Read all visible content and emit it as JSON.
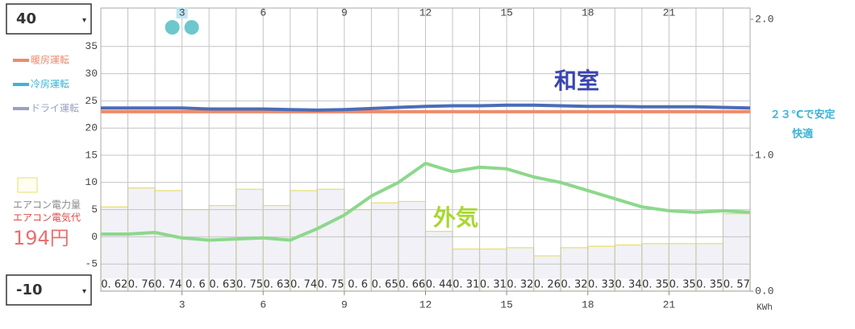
{
  "chart_data": {
    "type": "line",
    "xlim": [
      0,
      24
    ],
    "xticks": [
      3,
      6,
      9,
      12,
      15,
      18,
      21
    ],
    "ylim": [
      -10,
      40
    ],
    "yticks": [
      -5,
      0,
      5,
      10,
      15,
      20,
      25,
      30,
      35
    ],
    "y2lim": [
      0,
      2
    ],
    "y2ticks": [
      {
        "value": 2,
        "label": "2.0"
      },
      {
        "value": 1,
        "label": "1.0"
      },
      {
        "value": 0,
        "label": "0.0"
      }
    ],
    "y2_unit": "KWh",
    "grid": true,
    "x": [
      0,
      1,
      2,
      3,
      4,
      5,
      6,
      7,
      8,
      9,
      10,
      11,
      12,
      13,
      14,
      15,
      16,
      17,
      18,
      19,
      20,
      21,
      22,
      23,
      24
    ],
    "series": [
      {
        "name": "暖房運転",
        "color": "#f08a6a",
        "placement": "legend",
        "values": [
          23,
          23,
          23,
          23,
          23,
          23,
          23,
          23,
          23,
          23,
          23,
          23,
          23,
          23,
          23,
          23,
          23,
          23,
          23,
          23,
          23,
          23,
          23,
          23,
          23
        ]
      },
      {
        "name": "冷房運転",
        "color": "#3cb4d8",
        "placement": "legend",
        "values": [
          null,
          null,
          null,
          null,
          null,
          null,
          null,
          null,
          null,
          null,
          null,
          null,
          null,
          null,
          null,
          null,
          null,
          null,
          null,
          null,
          null,
          null,
          null,
          null,
          null
        ]
      },
      {
        "name": "ドライ運転",
        "color": "#9aa0c4",
        "placement": "legend",
        "values": [
          null,
          null,
          null,
          null,
          null,
          null,
          null,
          null,
          null,
          null,
          null,
          null,
          null,
          null,
          null,
          null,
          null,
          null,
          null,
          null,
          null,
          null,
          null,
          null,
          null
        ]
      },
      {
        "name": "和室",
        "color": "#4a6db8",
        "placement": "inline",
        "values": [
          23.7,
          23.7,
          23.7,
          23.7,
          23.5,
          23.5,
          23.5,
          23.4,
          23.3,
          23.4,
          23.6,
          23.8,
          24.0,
          24.1,
          24.1,
          24.2,
          24.2,
          24.1,
          24.0,
          24.0,
          23.9,
          23.9,
          23.9,
          23.8,
          23.7
        ]
      },
      {
        "name": "外気",
        "color": "#8cd88c",
        "placement": "inline",
        "values": [
          0.5,
          0.5,
          0.8,
          -0.2,
          -0.6,
          -0.4,
          -0.2,
          -0.6,
          1.5,
          4,
          7.5,
          10,
          13.5,
          12,
          12.8,
          12.5,
          11,
          10,
          8.5,
          7,
          5.5,
          4.8,
          4.5,
          4.8,
          4.5
        ]
      }
    ],
    "bars": {
      "axis": "y2",
      "color": "#e6df6a",
      "fill": "#f1f1f7",
      "values": [
        0.62,
        0.76,
        0.74,
        0.6,
        0.63,
        0.75,
        0.63,
        0.74,
        0.75,
        0.6,
        0.65,
        0.66,
        0.44,
        0.31,
        0.31,
        0.32,
        0.26,
        0.32,
        0.33,
        0.34,
        0.35,
        0.35,
        0.35,
        0.57
      ],
      "value_labels": [
        "0. 62",
        "0. 76",
        "0. 74",
        "0. 6",
        "0. 63",
        "0. 75",
        "0. 63",
        "0. 74",
        "0. 75",
        "0. 6",
        "0. 65",
        "0. 66",
        "0. 44",
        "0. 31",
        "0. 31",
        "0. 32",
        "0. 26",
        "0. 32",
        "0. 33",
        "0. 34",
        "0. 35",
        "0. 35",
        "0. 35",
        "0. 57"
      ]
    },
    "annotations": [
      "２３℃で安定",
      "快適"
    ],
    "energy_label": "エアコン電力量",
    "cost_label": "エアコン電気代",
    "cost": "194円"
  }
}
